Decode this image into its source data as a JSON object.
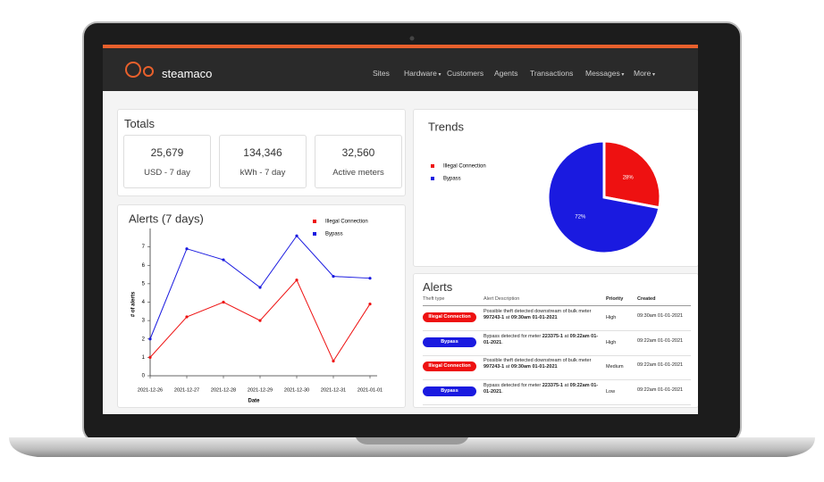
{
  "brand": "steamaco",
  "nav": [
    {
      "label": "Sites"
    },
    {
      "label": "Hardware",
      "dropdown": true
    },
    {
      "label": "Customers"
    },
    {
      "label": "Agents"
    },
    {
      "label": "Transactions"
    },
    {
      "label": "Messages",
      "dropdown": true
    },
    {
      "label": "More",
      "dropdown": true
    }
  ],
  "totals": {
    "title": "Totals",
    "cards": [
      {
        "value": "25,679",
        "label": "USD - 7 day"
      },
      {
        "value": "134,346",
        "label": "kWh - 7 day"
      },
      {
        "value": "32,560",
        "label": "Active meters"
      }
    ]
  },
  "chart_data": [
    {
      "type": "line",
      "title": "Alerts (7 days)",
      "x_label": "Date",
      "y_label": "# of alerts",
      "categories": [
        "2021-12-26",
        "2021-12-27",
        "2021-12-28",
        "2021-12-29",
        "2021-12-30",
        "2021-12-31",
        "2021-01-01"
      ],
      "series": [
        {
          "name": "Illegal Connection",
          "color": "#ee1111",
          "values": [
            1,
            3.2,
            4,
            3,
            5.2,
            0.8,
            3.9
          ]
        },
        {
          "name": "Bypass",
          "color": "#1a1ae0",
          "values": [
            2,
            6.9,
            6.3,
            4.8,
            7.6,
            5.4,
            5.3
          ]
        }
      ],
      "ylim": [
        0,
        8
      ],
      "yticks": [
        0,
        1,
        2,
        3,
        4,
        5,
        6,
        7
      ]
    },
    {
      "type": "pie",
      "title": "Trends",
      "categories": [
        "Illegal Connection",
        "Bypass"
      ],
      "values": [
        28,
        72
      ],
      "value_labels": [
        "28%",
        "72%"
      ],
      "colors": [
        "#ee1111",
        "#1a1ae0"
      ]
    }
  ],
  "alerts": {
    "title": "Alerts",
    "columns": [
      "Theft type",
      "Alert Description",
      "Priority",
      "Created"
    ],
    "rows": [
      {
        "type": "Illegal Connection",
        "color": "#ee1111",
        "description": [
          "Possible theft detected downstream of bulk meter ",
          "997243-1",
          " at ",
          "09:30am 01-01-2021"
        ],
        "priority": "High",
        "created": "09:30am 01-01-2021"
      },
      {
        "type": "Bypass",
        "color": "#1a1ae0",
        "description": [
          "Bypass detected for meter ",
          "223375-1",
          " at ",
          "09:22am 01-01-2021",
          "."
        ],
        "priority": "High",
        "created": "09:22am 01-01-2021"
      },
      {
        "type": "Illegal Connection",
        "color": "#ee1111",
        "description": [
          "Possible theft detected downstream of bulk meter ",
          "997243-1",
          " at ",
          "09:30am 01-01-2021"
        ],
        "priority": "Medium",
        "created": "09:22am 01-01-2021"
      },
      {
        "type": "Bypass",
        "color": "#1a1ae0",
        "description": [
          "Bypass detected for meter ",
          "223375-1",
          " at ",
          "09:22am 01-01-2021",
          "."
        ],
        "priority": "Low",
        "created": "09:22am 01-01-2021"
      }
    ]
  }
}
